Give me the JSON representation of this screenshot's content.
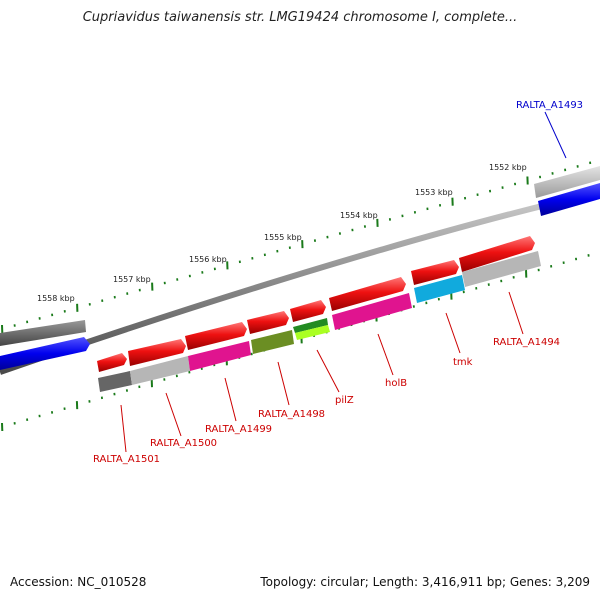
{
  "title": "Cupriavidus taiwanensis str. LMG19424 chromosome I, complete...",
  "footer": {
    "accession": "Accession: NC_010528",
    "topology": "Topology: circular; Length: 3,416,911 bp; Genes: 3,209"
  },
  "colors": {
    "forward": "#ee1111",
    "tick": "#1a7a1a",
    "backbone": "#7a7a7a",
    "label_red": "#cc0000",
    "label_blue": "#0000cc"
  },
  "kbp_labels": [
    "1552 kbp",
    "1553 kbp",
    "1554 kbp",
    "1555 kbp",
    "1556 kbp",
    "1557 kbp",
    "1558 kbp"
  ],
  "features": {
    "forward_arrows": [
      {
        "name": "gene-1501-fwd"
      },
      {
        "name": "gene-1500-fwd"
      },
      {
        "name": "gene-1499-fwd"
      },
      {
        "name": "gene-1498-fwd"
      },
      {
        "name": "gene-pilZ-fwd"
      },
      {
        "name": "gene-holB-fwd"
      },
      {
        "name": "gene-tmk-fwd"
      },
      {
        "name": "gene-1494-fwd"
      }
    ],
    "cog_boxes": [
      {
        "name": "cog-1501",
        "color": "#666666"
      },
      {
        "name": "cog-1500",
        "color": "#b4b4b4"
      },
      {
        "name": "cog-1499",
        "color": "#e0148f"
      },
      {
        "name": "cog-1498",
        "color": "#6b8e23"
      },
      {
        "name": "cog-pilZ",
        "color": "#228b22",
        "color2": "#aaff22"
      },
      {
        "name": "cog-holB",
        "color": "#e0148f"
      },
      {
        "name": "cog-tmk",
        "color": "#11aadd"
      },
      {
        "name": "cog-1494",
        "color": "#b4b4b4"
      }
    ]
  },
  "gene_labels": [
    {
      "text": "RALTA_A1493",
      "color": "blue"
    },
    {
      "text": "RALTA_A1494",
      "color": "red"
    },
    {
      "text": "tmk",
      "color": "red"
    },
    {
      "text": "holB",
      "color": "red"
    },
    {
      "text": "pilZ",
      "color": "red"
    },
    {
      "text": "RALTA_A1498",
      "color": "red"
    },
    {
      "text": "RALTA_A1499",
      "color": "red"
    },
    {
      "text": "RALTA_A1500",
      "color": "red"
    },
    {
      "text": "RALTA_A1501",
      "color": "red"
    }
  ]
}
